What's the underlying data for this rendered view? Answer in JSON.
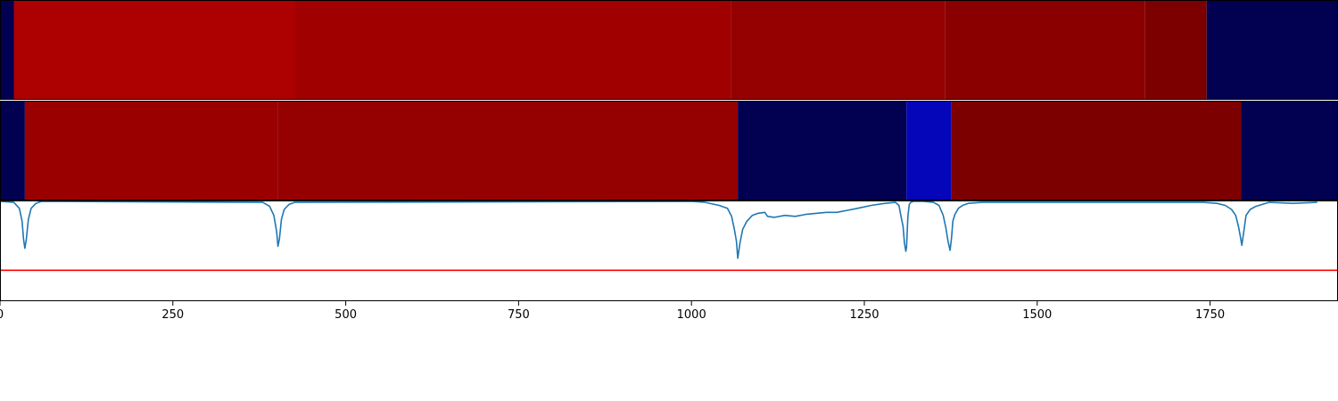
{
  "chart_data": [
    {
      "type": "heatmap",
      "xlim": [
        0,
        1935
      ],
      "colormap": "seismic",
      "segments": [
        {
          "x0": 0,
          "x1": 20,
          "color": "#020050"
        },
        {
          "x0": 20,
          "x1": 427,
          "color": "#ad0000"
        },
        {
          "x0": 427,
          "x1": 1057,
          "color": "#a00000"
        },
        {
          "x0": 1057,
          "x1": 1367,
          "color": "#950000"
        },
        {
          "x0": 1367,
          "x1": 1656,
          "color": "#8a0000"
        },
        {
          "x0": 1656,
          "x1": 1745,
          "color": "#7d0000"
        },
        {
          "x0": 1745,
          "x1": 1935,
          "color": "#020050"
        }
      ]
    },
    {
      "type": "heatmap",
      "xlim": [
        0,
        1935
      ],
      "colormap": "seismic",
      "segments": [
        {
          "x0": 0,
          "x1": 36,
          "color": "#020050"
        },
        {
          "x0": 36,
          "x1": 402,
          "color": "#9b0000"
        },
        {
          "x0": 402,
          "x1": 1067,
          "color": "#950000"
        },
        {
          "x0": 1067,
          "x1": 1311,
          "color": "#020050"
        },
        {
          "x0": 1311,
          "x1": 1376,
          "color": "#0505b9"
        },
        {
          "x0": 1376,
          "x1": 1795,
          "color": "#7d0000"
        },
        {
          "x0": 1795,
          "x1": 1935,
          "color": "#020050"
        }
      ]
    },
    {
      "type": "line",
      "xlim": [
        0,
        1935
      ],
      "ylim": [
        0,
        1
      ],
      "grid": false,
      "xticks": [
        0,
        250,
        500,
        750,
        1000,
        1250,
        1500,
        1750
      ],
      "xtick_labels": [
        "0",
        "250",
        "500",
        "750",
        "1000",
        "1250",
        "1500",
        "1750"
      ],
      "threshold": {
        "y": 0.31,
        "color": "#ff0000"
      },
      "series": [
        {
          "color": "#1f77b4",
          "x": [
            0,
            20,
            28,
            32,
            34,
            36,
            38,
            41,
            45,
            52,
            60,
            380,
            390,
            396,
            400,
            402,
            404,
            407,
            411,
            418,
            426,
            1000,
            1020,
            1040,
            1052,
            1058,
            1062,
            1065,
            1067,
            1070,
            1074,
            1080,
            1088,
            1096,
            1106,
            1110,
            1120,
            1135,
            1150,
            1165,
            1180,
            1195,
            1210,
            1225,
            1240,
            1260,
            1280,
            1295,
            1300,
            1303,
            1306,
            1308,
            1310,
            1311,
            1313,
            1315,
            1317,
            1321,
            1325,
            1335,
            1350,
            1358,
            1364,
            1368,
            1371,
            1374,
            1376,
            1378,
            1381,
            1386,
            1392,
            1400,
            1420,
            1740,
            1760,
            1772,
            1781,
            1787,
            1791,
            1794,
            1796,
            1799,
            1802,
            1808,
            1816,
            1835,
            1870,
            1905
          ],
          "y": [
            1.0,
            0.99,
            0.93,
            0.8,
            0.62,
            0.53,
            0.62,
            0.82,
            0.93,
            0.98,
            1.0,
            0.99,
            0.95,
            0.86,
            0.7,
            0.55,
            0.62,
            0.82,
            0.92,
            0.97,
            0.99,
            1.0,
            0.99,
            0.96,
            0.93,
            0.85,
            0.72,
            0.6,
            0.43,
            0.58,
            0.72,
            0.8,
            0.86,
            0.88,
            0.89,
            0.85,
            0.84,
            0.86,
            0.85,
            0.87,
            0.88,
            0.89,
            0.89,
            0.91,
            0.93,
            0.96,
            0.98,
            0.99,
            0.96,
            0.85,
            0.75,
            0.58,
            0.5,
            0.54,
            0.85,
            0.97,
            0.99,
            1.0,
            1.0,
            1.0,
            0.99,
            0.96,
            0.86,
            0.73,
            0.6,
            0.51,
            0.63,
            0.8,
            0.87,
            0.93,
            0.96,
            0.98,
            0.99,
            0.99,
            0.98,
            0.96,
            0.92,
            0.86,
            0.75,
            0.64,
            0.56,
            0.71,
            0.86,
            0.92,
            0.95,
            0.99,
            0.98,
            0.99
          ]
        }
      ]
    }
  ]
}
